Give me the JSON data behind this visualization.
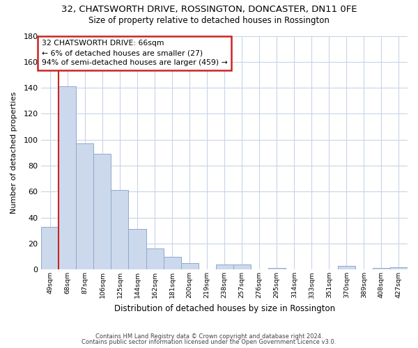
{
  "title": "32, CHATSWORTH DRIVE, ROSSINGTON, DONCASTER, DN11 0FE",
  "subtitle": "Size of property relative to detached houses in Rossington",
  "xlabel": "Distribution of detached houses by size in Rossington",
  "ylabel": "Number of detached properties",
  "bar_labels": [
    "49sqm",
    "68sqm",
    "87sqm",
    "106sqm",
    "125sqm",
    "144sqm",
    "162sqm",
    "181sqm",
    "200sqm",
    "219sqm",
    "238sqm",
    "257sqm",
    "276sqm",
    "295sqm",
    "314sqm",
    "333sqm",
    "351sqm",
    "370sqm",
    "389sqm",
    "408sqm",
    "427sqm"
  ],
  "bar_values": [
    33,
    141,
    97,
    89,
    61,
    31,
    16,
    10,
    5,
    0,
    4,
    4,
    0,
    1,
    0,
    0,
    0,
    3,
    0,
    1,
    2
  ],
  "bar_color": "#ccd9ec",
  "bar_edge_color": "#8fa8cc",
  "annotation_line1": "32 CHATSWORTH DRIVE: 66sqm",
  "annotation_line2": "← 6% of detached houses are smaller (27)",
  "annotation_line3": "94% of semi-detached houses are larger (459) →",
  "annotation_box_color": "#ffffff",
  "annotation_box_edge": "#cc2222",
  "ylim": [
    0,
    180
  ],
  "yticks": [
    0,
    20,
    40,
    60,
    80,
    100,
    120,
    140,
    160,
    180
  ],
  "vline_color": "#cc2222",
  "footer1": "Contains HM Land Registry data © Crown copyright and database right 2024.",
  "footer2": "Contains public sector information licensed under the Open Government Licence v3.0.",
  "bg_color": "#ffffff",
  "grid_color": "#c8d4e8",
  "vline_x_index": 1
}
